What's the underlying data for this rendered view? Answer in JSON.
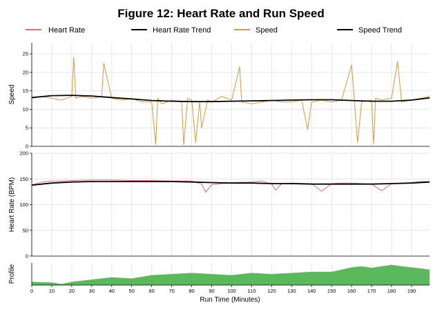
{
  "chart_data": {
    "type": "line",
    "title": "Figure 12: Heart Rate and Run Speed",
    "xlabel": "Run Time (Minutes)",
    "xlim": [
      0,
      199
    ],
    "x_ticks": [
      "0",
      "10",
      "20",
      "30",
      "40",
      "50",
      "60",
      "70",
      "80",
      "90",
      "100",
      "110",
      "120",
      "130",
      "140",
      "150",
      "160",
      "170",
      "180",
      "190"
    ],
    "legend": {
      "placement": "top",
      "entries": [
        {
          "name": "Heart Rate",
          "color": "#e06c75"
        },
        {
          "name": "Heart Rate Trend",
          "color": "#000000"
        },
        {
          "name": "Speed",
          "color": "#d9973a"
        },
        {
          "name": "Speed Trend",
          "color": "#000000"
        }
      ]
    },
    "panels": [
      {
        "ylabel": "Speed",
        "ylim": [
          0,
          28
        ],
        "y_ticks": [
          "0",
          "5",
          "10",
          "15",
          "20",
          "25"
        ],
        "series": [
          {
            "name": "Speed",
            "color": "#d9973a",
            "x": [
              0,
              5,
              10,
              15,
              20,
              21,
              22,
              25,
              30,
              35,
              36,
              40,
              45,
              50,
              55,
              60,
              62,
              63,
              65,
              70,
              75,
              76,
              78,
              80,
              82,
              84,
              85,
              88,
              90,
              95,
              100,
              104,
              105,
              110,
              115,
              120,
              125,
              130,
              135,
              138,
              140,
              145,
              150,
              155,
              160,
              163,
              165,
              170,
              171,
              172,
              175,
              180,
              183,
              185,
              190,
              195,
              199
            ],
            "y": [
              13.0,
              13.5,
              13.0,
              12.5,
              13.5,
              24.0,
              13.0,
              13.5,
              13.0,
              13.5,
              22.5,
              13.0,
              12.5,
              13.0,
              12.0,
              12.0,
              0.5,
              13.0,
              11.5,
              12.5,
              12.0,
              0.5,
              13.0,
              12.5,
              1.0,
              12.0,
              5.0,
              12.5,
              12.0,
              13.5,
              12.5,
              21.5,
              12.0,
              11.5,
              12.0,
              12.5,
              12.0,
              12.0,
              12.5,
              4.5,
              12.0,
              12.5,
              12.0,
              12.5,
              22.0,
              1.0,
              12.0,
              12.5,
              0.5,
              13.0,
              12.5,
              13.0,
              23.0,
              12.0,
              12.5,
              13.0,
              13.5
            ]
          },
          {
            "name": "Speed Trend",
            "color": "#000000",
            "x": [
              0,
              10,
              20,
              30,
              40,
              50,
              60,
              70,
              80,
              90,
              100,
              110,
              120,
              130,
              140,
              150,
              160,
              170,
              180,
              190,
              199
            ],
            "y": [
              13.2,
              13.7,
              13.8,
              13.6,
              13.2,
              12.8,
              12.4,
              12.2,
              12.1,
              12.1,
              12.2,
              12.3,
              12.4,
              12.5,
              12.6,
              12.6,
              12.4,
              12.2,
              12.2,
              12.5,
              13.1
            ]
          }
        ]
      },
      {
        "ylabel": "Heart Rate (BPM)",
        "ylim": [
          0,
          200
        ],
        "y_ticks": [
          "0",
          "50",
          "100",
          "150",
          "200"
        ],
        "series": [
          {
            "name": "Heart Rate",
            "color": "#e06c75",
            "x": [
              0,
              5,
              10,
              15,
              20,
              30,
              40,
              50,
              60,
              70,
              80,
              85,
              87,
              90,
              95,
              100,
              110,
              115,
              120,
              122,
              125,
              130,
              140,
              145,
              150,
              155,
              160,
              165,
              170,
              175,
              180,
              185,
              190,
              195,
              199
            ],
            "y": [
              138,
              144,
              146,
              146,
              147,
              148,
              148,
              147,
              147,
              146,
              146,
              140,
              124,
              139,
              141,
              143,
              144,
              146,
              140,
              128,
              141,
              142,
              141,
              126,
              141,
              142,
              142,
              141,
              140,
              127,
              141,
              142,
              143,
              145,
              145
            ]
          },
          {
            "name": "Heart Rate Trend",
            "color": "#000000",
            "x": [
              0,
              10,
              20,
              30,
              40,
              50,
              60,
              70,
              80,
              90,
              100,
              110,
              120,
              130,
              140,
              150,
              160,
              170,
              180,
              190,
              199
            ],
            "y": [
              138,
              142,
              144,
              145,
              145,
              145,
              145,
              145,
              144,
              143,
              142,
              142,
              141,
              141,
              140,
              140,
              140,
              140,
              141,
              142,
              144
            ]
          }
        ]
      },
      {
        "ylabel": "Profile",
        "series": [
          {
            "name": "Profile",
            "color": "#5cb85c",
            "x": [
              0,
              10,
              15,
              20,
              25,
              30,
              40,
              50,
              60,
              70,
              80,
              90,
              100,
              110,
              120,
              130,
              140,
              150,
              160,
              165,
              170,
              175,
              180,
              185,
              190,
              195,
              199
            ],
            "y": [
              0.15,
              0.12,
              0.05,
              0.15,
              0.2,
              0.25,
              0.35,
              0.3,
              0.45,
              0.5,
              0.55,
              0.5,
              0.45,
              0.55,
              0.5,
              0.55,
              0.6,
              0.6,
              0.8,
              0.85,
              0.78,
              0.85,
              0.92,
              0.85,
              0.8,
              0.75,
              0.7
            ]
          }
        ]
      }
    ]
  }
}
